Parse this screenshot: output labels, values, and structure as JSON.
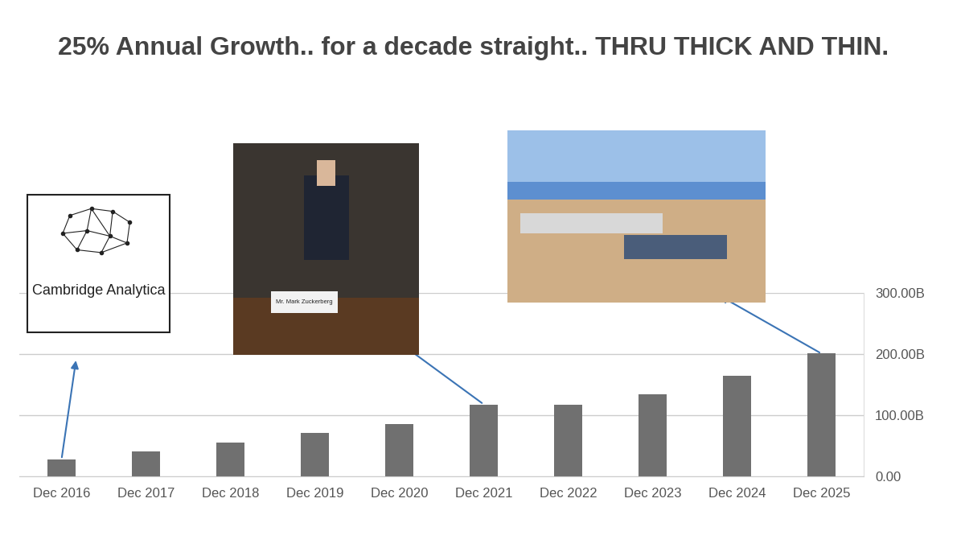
{
  "chart_data": {
    "type": "bar",
    "title": "25% Annual Growth.. for a decade straight.. THRU THICK AND THIN.",
    "categories": [
      "Dec 2016",
      "Dec 2017",
      "Dec 2018",
      "Dec 2019",
      "Dec 2020",
      "Dec 2021",
      "Dec 2022",
      "Dec 2023",
      "Dec 2024",
      "Dec 2025"
    ],
    "values": [
      27.6,
      40.7,
      55.8,
      70.7,
      86.0,
      117.9,
      116.6,
      134.9,
      164.5,
      201.0
    ],
    "color": "#707070",
    "ylim": [
      0,
      300
    ],
    "yticks": [
      {
        "value": 0,
        "label": "0.00"
      },
      {
        "value": 100,
        "label": "100.00B"
      },
      {
        "value": 200,
        "label": "200.00B"
      },
      {
        "value": 300,
        "label": "300.00B"
      }
    ],
    "grid": true,
    "annotations": [
      {
        "text": "Cambridge Analytica",
        "category": "Dec 2016"
      },
      {
        "text": "Mr. Mark Zuckerberg",
        "category": "Dec 2021"
      },
      {
        "category": "Dec 2025"
      }
    ]
  }
}
